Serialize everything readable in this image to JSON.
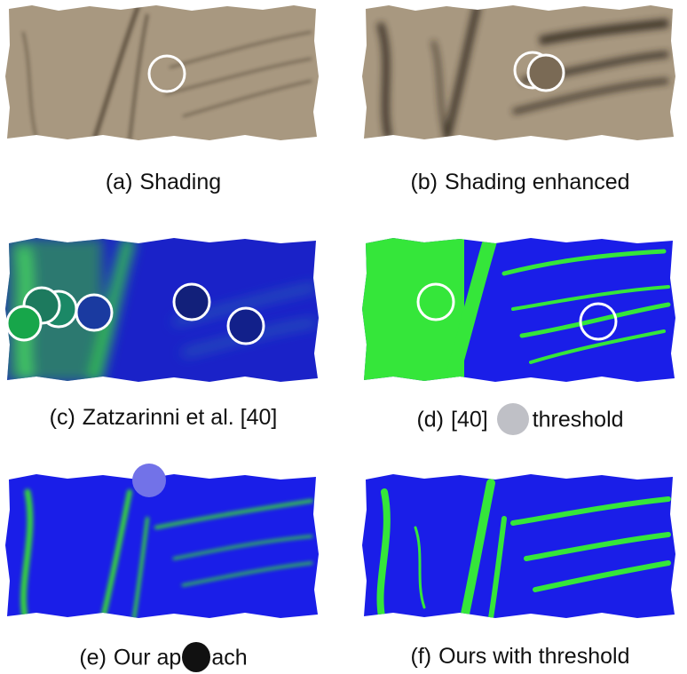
{
  "figure": {
    "panels": [
      {
        "id": "a",
        "label": "(a)",
        "caption": "Shading"
      },
      {
        "id": "b",
        "label": "(b)",
        "caption": "Shading enhanced"
      },
      {
        "id": "c",
        "label": "(c)",
        "caption": "Zatzarinni et al. [40]"
      },
      {
        "id": "d",
        "label": "(d)",
        "caption_start": "[40]",
        "caption_end": "threshold"
      },
      {
        "id": "e",
        "label": "(e)",
        "caption_start": "Our ap",
        "caption_end": "ach"
      },
      {
        "id": "f",
        "label": "(f)",
        "caption": "Ours with threshold"
      }
    ],
    "colors": {
      "shading": "#a89880",
      "shading_dark": "#3e3426",
      "map_blue": "#1a1ee8",
      "map_green": "#35e63a",
      "highlight_ring": "#ffffff"
    }
  }
}
